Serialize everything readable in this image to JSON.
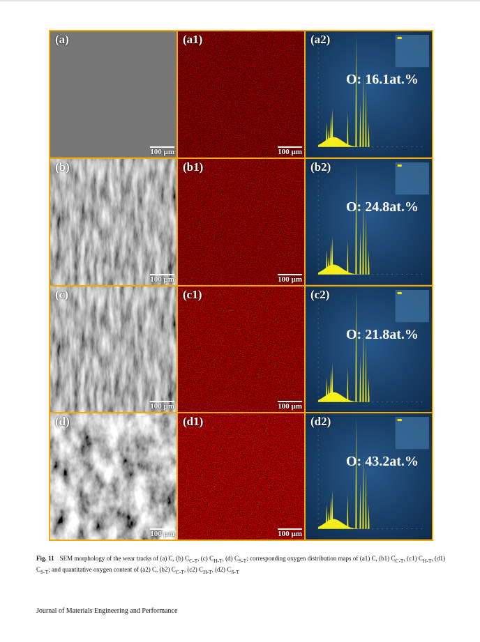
{
  "figure": {
    "rows": [
      {
        "sem": {
          "label": "(a)",
          "scale": "100 µm"
        },
        "map": {
          "label": "(a1)",
          "scale": "100 µm"
        },
        "spectrum": {
          "label": "(a2)",
          "oxygen": "O: 16.1at.%"
        }
      },
      {
        "sem": {
          "label": "(b)",
          "scale": "100 µm"
        },
        "map": {
          "label": "(b1)",
          "scale": "100 µm"
        },
        "spectrum": {
          "label": "(b2)",
          "oxygen": "O: 24.8at.%"
        }
      },
      {
        "sem": {
          "label": "(c)",
          "scale": "100 µm"
        },
        "map": {
          "label": "(c1)",
          "scale": "100 µm"
        },
        "spectrum": {
          "label": "(c2)",
          "oxygen": "O: 21.8at.%"
        }
      },
      {
        "sem": {
          "label": "(d)",
          "scale": "100 µm"
        },
        "map": {
          "label": "(d1)",
          "scale": "100 µm"
        },
        "spectrum": {
          "label": "(d2)",
          "oxygen": "O: 43.2at.%"
        }
      }
    ]
  },
  "caption": {
    "label": "Fig. 11",
    "runs": [
      {
        "text": "SEM morphology of the wear tracks of (a) C, (b) C"
      },
      {
        "sub": "C-T"
      },
      {
        "text": ", (c) C"
      },
      {
        "sub": "H-T"
      },
      {
        "text": ", (d) C"
      },
      {
        "sub": "S-T"
      },
      {
        "text": "; corresponding oxygen distribution maps of (a1) C, (b1) C"
      },
      {
        "sub": "C-T"
      },
      {
        "text": ", (c1) C"
      },
      {
        "sub": "H-T"
      },
      {
        "text": ", (d1) C"
      },
      {
        "sub": "S-T"
      },
      {
        "text": "; and quantitative oxygen content of (a2) C, (b2) C"
      },
      {
        "sub": "C-T"
      },
      {
        "text": ", (c2) C"
      },
      {
        "sub": "H-T"
      },
      {
        "text": ", (d2) C"
      },
      {
        "sub": "S-T"
      }
    ]
  },
  "footer": "Journal of Materials Engineering and Performance"
}
